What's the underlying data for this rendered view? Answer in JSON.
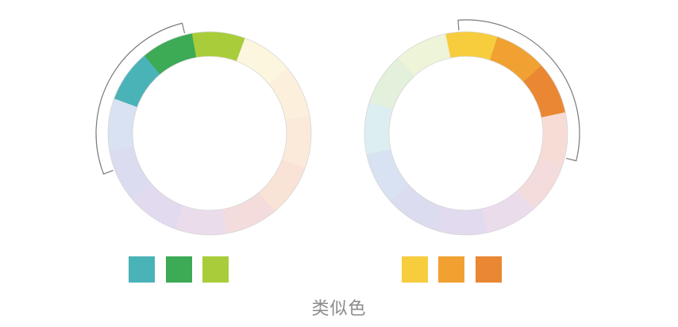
{
  "caption": "类似色",
  "wheels": [
    {
      "segments": [
        {
          "color": "#fcf6de",
          "highlighted": false
        },
        {
          "color": "#fcf0dc",
          "highlighted": false
        },
        {
          "color": "#fbeada",
          "highlighted": false
        },
        {
          "color": "#f9e2d6",
          "highlighted": false
        },
        {
          "color": "#f5dcdc",
          "highlighted": false
        },
        {
          "color": "#ebdcec",
          "highlighted": false
        },
        {
          "color": "#e2daee",
          "highlighted": false
        },
        {
          "color": "#dbdcf0",
          "highlighted": false
        },
        {
          "color": "#d9e2f2",
          "highlighted": false
        },
        {
          "color": "#4ab3b8",
          "highlighted": true
        },
        {
          "color": "#3daa56",
          "highlighted": true
        },
        {
          "color": "#a9cd3a",
          "highlighted": true
        }
      ],
      "swatches": [
        "#4ab3b8",
        "#3daa56",
        "#a9cd3a"
      ]
    },
    {
      "segments": [
        {
          "color": "#f7cd3e",
          "highlighted": true
        },
        {
          "color": "#f0a132",
          "highlighted": true
        },
        {
          "color": "#e98732",
          "highlighted": true
        },
        {
          "color": "#f7dcd6",
          "highlighted": false
        },
        {
          "color": "#f4dcdc",
          "highlighted": false
        },
        {
          "color": "#ebdcec",
          "highlighted": false
        },
        {
          "color": "#e2daee",
          "highlighted": false
        },
        {
          "color": "#dbdcf0",
          "highlighted": false
        },
        {
          "color": "#d9e2f2",
          "highlighted": false
        },
        {
          "color": "#dceef0",
          "highlighted": false
        },
        {
          "color": "#e2f0dc",
          "highlighted": false
        },
        {
          "color": "#eef4d8",
          "highlighted": false
        }
      ],
      "swatches": [
        "#f7cd3e",
        "#f0a132",
        "#e98732"
      ]
    }
  ]
}
